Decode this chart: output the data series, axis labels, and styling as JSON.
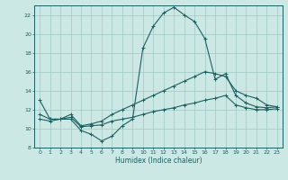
{
  "title": "",
  "xlabel": "Humidex (Indice chaleur)",
  "bg_color": "#cce8e4",
  "grid_color": "#a0c8c4",
  "line_color": "#1a6060",
  "hours": [
    0,
    1,
    2,
    3,
    4,
    5,
    6,
    7,
    8,
    9,
    10,
    11,
    12,
    13,
    14,
    15,
    16,
    17,
    18,
    19,
    20,
    21,
    22,
    23
  ],
  "line1": [
    13.0,
    11.0,
    11.0,
    11.0,
    9.8,
    9.4,
    8.7,
    9.2,
    10.3,
    11.0,
    18.5,
    20.8,
    22.2,
    22.8,
    22.0,
    21.3,
    19.5,
    15.2,
    15.8,
    13.5,
    12.7,
    12.3,
    12.2,
    12.3
  ],
  "line2": [
    11.5,
    11.0,
    11.0,
    11.5,
    10.3,
    10.5,
    10.8,
    11.5,
    12.0,
    12.5,
    13.0,
    13.5,
    14.0,
    14.5,
    15.0,
    15.5,
    16.0,
    15.8,
    15.5,
    14.0,
    13.5,
    13.2,
    12.5,
    12.3
  ],
  "line3": [
    11.0,
    10.8,
    11.0,
    11.2,
    10.2,
    10.3,
    10.4,
    10.8,
    11.0,
    11.2,
    11.5,
    11.8,
    12.0,
    12.2,
    12.5,
    12.7,
    13.0,
    13.2,
    13.5,
    12.5,
    12.2,
    12.0,
    12.0,
    12.1
  ],
  "ylim": [
    8,
    23
  ],
  "yticks": [
    8,
    10,
    12,
    14,
    16,
    18,
    20,
    22
  ],
  "xlim": [
    -0.5,
    23.5
  ]
}
